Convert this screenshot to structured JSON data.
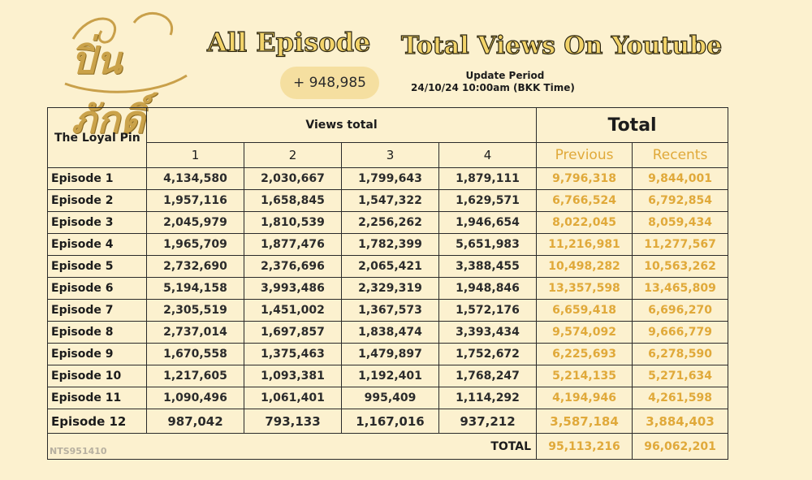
{
  "logo": {
    "text": "ปิ่นภักดิ์"
  },
  "header": {
    "title_left": "All Episode",
    "title_right": "Total Views On Youtube",
    "badge": "+ 948,985",
    "update_label": "Update Period",
    "update_value": "24/10/24 10:00am (BKK Time)"
  },
  "table": {
    "corner": "The Loyal Pin",
    "views_total": "Views total",
    "total": "Total",
    "cols": [
      "1",
      "2",
      "3",
      "4"
    ],
    "previous": "Previous",
    "recents": "Recents",
    "rows": [
      {
        "ep": "Episode 1",
        "v": [
          "4,134,580",
          "2,030,667",
          "1,799,643",
          "1,879,111"
        ],
        "prev": "9,796,318",
        "rec": "9,844,001"
      },
      {
        "ep": "Episode 2",
        "v": [
          "1,957,116",
          "1,658,845",
          "1,547,322",
          "1,629,571"
        ],
        "prev": "6,766,524",
        "rec": "6,792,854"
      },
      {
        "ep": "Episode 3",
        "v": [
          "2,045,979",
          "1,810,539",
          "2,256,262",
          "1,946,654"
        ],
        "prev": "8,022,045",
        "rec": "8,059,434"
      },
      {
        "ep": "Episode 4",
        "v": [
          "1,965,709",
          "1,877,476",
          "1,782,399",
          "5,651,983"
        ],
        "prev": "11,216,981",
        "rec": "11,277,567"
      },
      {
        "ep": "Episode 5",
        "v": [
          "2,732,690",
          "2,376,696",
          "2,065,421",
          "3,388,455"
        ],
        "prev": "10,498,282",
        "rec": "10,563,262"
      },
      {
        "ep": "Episode 6",
        "v": [
          "5,194,158",
          "3,993,486",
          "2,329,319",
          "1,948,846"
        ],
        "prev": "13,357,598",
        "rec": "13,465,809"
      },
      {
        "ep": "Episode 7",
        "v": [
          "2,305,519",
          "1,451,002",
          "1,367,573",
          "1,572,176"
        ],
        "prev": "6,659,418",
        "rec": "6,696,270"
      },
      {
        "ep": "Episode 8",
        "v": [
          "2,737,014",
          "1,697,857",
          "1,838,474",
          "3,393,434"
        ],
        "prev": "9,574,092",
        "rec": "9,666,779"
      },
      {
        "ep": "Episode 9",
        "v": [
          "1,670,558",
          "1,375,463",
          "1,479,897",
          "1,752,672"
        ],
        "prev": "6,225,693",
        "rec": "6,278,590"
      },
      {
        "ep": "Episode 10",
        "v": [
          "1,217,605",
          "1,093,381",
          "1,192,401",
          "1,768,247"
        ],
        "prev": "5,214,135",
        "rec": "5,271,634"
      },
      {
        "ep": "Episode 11",
        "v": [
          "1,090,496",
          "1,061,401",
          "995,409",
          "1,114,292"
        ],
        "prev": "4,194,946",
        "rec": "4,261,598"
      },
      {
        "ep": "Episode 12",
        "v": [
          "987,042",
          "793,133",
          "1,167,016",
          "937,212"
        ],
        "prev": "3,587,184",
        "rec": "3,884,403"
      }
    ],
    "total_label": "TOTAL",
    "total_prev": "95,113,216",
    "total_rec": "96,062,201",
    "watermark": "NTS951410"
  },
  "colors": {
    "background": "#fcf1cf",
    "gold": "#e0a93a",
    "badge": "#f5dfa0"
  }
}
